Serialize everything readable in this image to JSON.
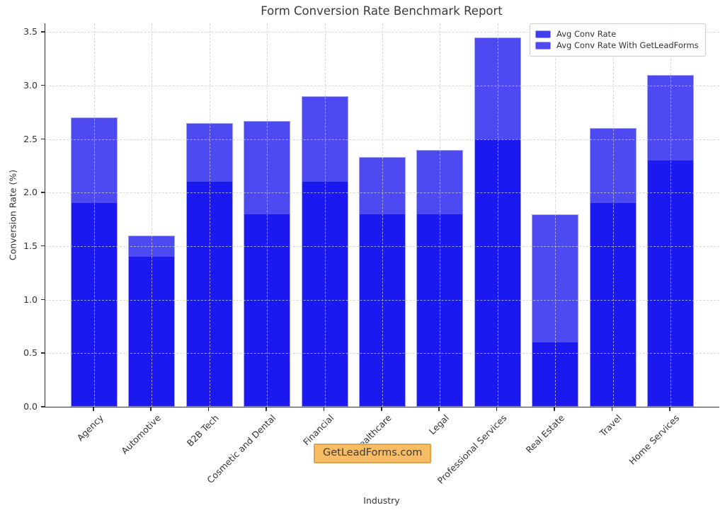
{
  "title": "Form Conversion Rate Benchmark Report",
  "watermark": "GetLeadForms.com",
  "chart_data": {
    "type": "bar",
    "variant": "overlaid-stacked-look",
    "title": "Form Conversion Rate Benchmark Report",
    "xlabel": "Industry",
    "ylabel": "Conversion Rate (%)",
    "ylim": [
      0,
      3.58
    ],
    "yticks": [
      0.0,
      0.5,
      1.0,
      1.5,
      2.0,
      2.5,
      3.0,
      3.5
    ],
    "grid": {
      "show": true,
      "style": "dashed",
      "axes": "both",
      "color": "#d0d0d0",
      "above_bars": true
    },
    "legend": {
      "position": "upper-right"
    },
    "categories": [
      "Agency",
      "Automotive",
      "B2B Tech",
      "Cosmetic and Dental",
      "Financial",
      "Healthcare",
      "Legal",
      "Professional Services",
      "Real Estate",
      "Travel",
      "Home Services"
    ],
    "series": [
      {
        "name": "Avg Conv Rate",
        "color": "#1b18f0",
        "legend_color": "#3f3dee",
        "values": [
          1.9,
          1.4,
          2.1,
          1.8,
          2.1,
          1.8,
          1.8,
          2.5,
          0.6,
          1.9,
          2.3
        ]
      },
      {
        "name": "Avg Conv Rate With GetLeadForms",
        "color": "#4c4af0",
        "legend_color": "#4c4af0",
        "values": [
          2.7,
          1.6,
          2.65,
          2.67,
          2.9,
          2.33,
          2.4,
          3.45,
          1.8,
          2.6,
          3.1
        ]
      }
    ],
    "bar_edge_color": "#a3a3f5"
  }
}
